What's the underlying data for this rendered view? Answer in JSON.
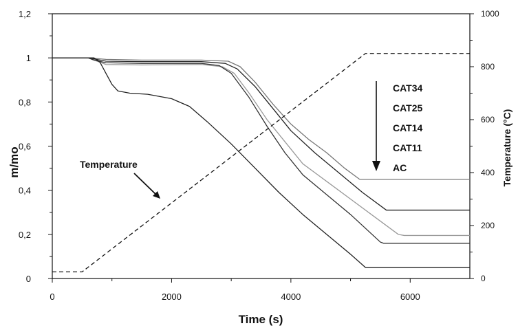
{
  "chart_data": {
    "type": "line",
    "xlabel": "Time (s)",
    "ylabel_left": "m/mo",
    "ylabel_right": "Temperature (°C)",
    "xlim": [
      0,
      7000
    ],
    "ylim_left": [
      0,
      1.2
    ],
    "ylim_right": [
      0,
      1000
    ],
    "x_ticks": [
      0,
      2000,
      4000,
      6000
    ],
    "x_tick_labels": [
      "0",
      "2000",
      "4000",
      "6000"
    ],
    "y_left_ticks": [
      0,
      0.2,
      0.4,
      0.6,
      0.8,
      1.0,
      1.2
    ],
    "y_left_tick_labels": [
      "0",
      "0,2",
      "0,4",
      "0,6",
      "0,8",
      "1",
      "1,2"
    ],
    "y_right_ticks": [
      0,
      200,
      400,
      600,
      800,
      1000
    ],
    "y_right_tick_labels": [
      "0",
      "200",
      "400",
      "600",
      "800",
      "1000"
    ],
    "grid": false,
    "series": [
      {
        "name": "CAT34",
        "axis": "left",
        "color": "#777777",
        "x": [
          0,
          600,
          700,
          900,
          1500,
          2500,
          2950,
          3150,
          3400,
          3700,
          4000,
          4300,
          4600,
          4900,
          5150,
          5300,
          7000
        ],
        "y": [
          1.0,
          1.0,
          0.998,
          0.993,
          0.99,
          0.99,
          0.985,
          0.96,
          0.89,
          0.79,
          0.7,
          0.63,
          0.57,
          0.5,
          0.45,
          0.45,
          0.45
        ]
      },
      {
        "name": "CAT25",
        "axis": "left",
        "color": "#222222",
        "x": [
          0,
          600,
          700,
          900,
          1500,
          2500,
          2900,
          3100,
          3400,
          3700,
          4000,
          4400,
          4800,
          5200,
          5600,
          5700,
          7000
        ],
        "y": [
          1.0,
          1.0,
          0.995,
          0.985,
          0.983,
          0.983,
          0.975,
          0.95,
          0.87,
          0.77,
          0.67,
          0.57,
          0.48,
          0.39,
          0.31,
          0.31,
          0.31
        ]
      },
      {
        "name": "CAT14",
        "axis": "left",
        "color": "#999999",
        "x": [
          0,
          600,
          700,
          900,
          1500,
          2500,
          2850,
          3050,
          3300,
          3600,
          3900,
          4200,
          4600,
          5000,
          5400,
          5800,
          5900,
          7000
        ],
        "y": [
          1.0,
          1.0,
          0.99,
          0.97,
          0.968,
          0.97,
          0.96,
          0.93,
          0.84,
          0.72,
          0.62,
          0.52,
          0.44,
          0.36,
          0.28,
          0.2,
          0.195,
          0.195
        ]
      },
      {
        "name": "CAT11",
        "axis": "left",
        "color": "#333333",
        "x": [
          0,
          600,
          700,
          900,
          1500,
          2500,
          2800,
          3000,
          3300,
          3600,
          3900,
          4200,
          4600,
          5000,
          5500,
          5550,
          7000
        ],
        "y": [
          1.0,
          1.0,
          0.99,
          0.978,
          0.975,
          0.975,
          0.965,
          0.93,
          0.82,
          0.69,
          0.57,
          0.47,
          0.38,
          0.29,
          0.165,
          0.16,
          0.16
        ]
      },
      {
        "name": "AC",
        "axis": "left",
        "color": "#222222",
        "x": [
          0,
          700,
          800,
          900,
          1000,
          1100,
          1300,
          1600,
          2000,
          2300,
          2600,
          3000,
          3400,
          3800,
          4200,
          4600,
          5000,
          5250,
          5350,
          7000
        ],
        "y": [
          1.0,
          1.0,
          0.98,
          0.93,
          0.88,
          0.85,
          0.84,
          0.835,
          0.815,
          0.78,
          0.71,
          0.61,
          0.5,
          0.39,
          0.29,
          0.2,
          0.11,
          0.05,
          0.05,
          0.05
        ]
      },
      {
        "name": "Temperature",
        "axis": "right",
        "color": "#111111",
        "dash": "6,4",
        "x": [
          0,
          500,
          5250,
          7000
        ],
        "y": [
          25,
          25,
          850,
          850
        ]
      }
    ],
    "annotations": {
      "temperature_label": "Temperature",
      "legend_labels": [
        "CAT34",
        "CAT25",
        "CAT14",
        "CAT11",
        "AC"
      ]
    }
  }
}
